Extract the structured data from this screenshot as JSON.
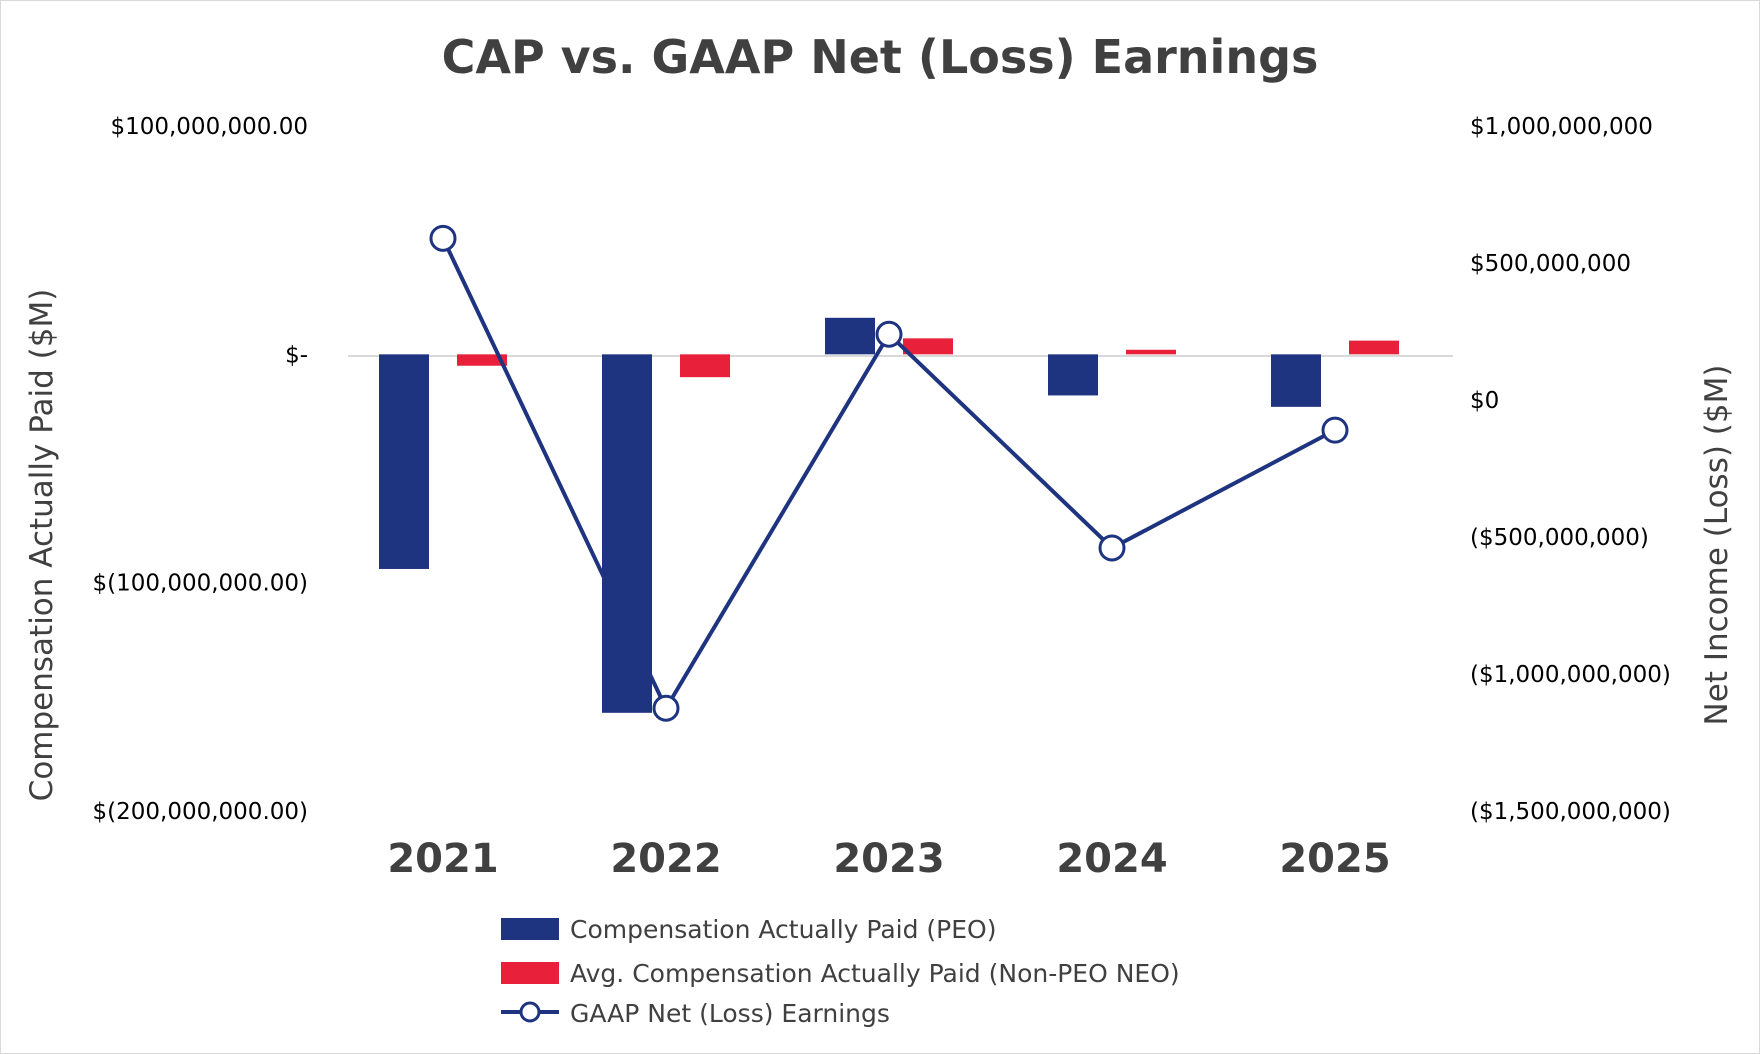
{
  "chart_data": {
    "type": "bar",
    "title": "CAP vs. GAAP Net (Loss) Earnings",
    "categories": [
      "2021",
      "2022",
      "2023",
      "2024",
      "2025"
    ],
    "series": [
      {
        "name": "Compensation Actually Paid (PEO)",
        "type": "bar",
        "axis": "left",
        "color": "#1f3480",
        "values": [
          -94000000,
          -157000000,
          16000000,
          -18000000,
          -23000000
        ]
      },
      {
        "name": "Avg. Compensation Actually Paid (Non-PEO NEO)",
        "type": "bar",
        "axis": "left",
        "color": "#e8203a",
        "values": [
          -5000000,
          -10000000,
          7000000,
          2000000,
          6000000
        ]
      },
      {
        "name": "GAAP Net (Loss) Earnings",
        "type": "line",
        "axis": "right",
        "color": "#1f3480",
        "marker": "circle",
        "values": [
          590000000,
          -1125000000,
          240000000,
          -540000000,
          -110000000
        ]
      }
    ],
    "left_axis": {
      "label": "Compensation Actually Paid ($M)",
      "ylim": [
        -200000000,
        100000000
      ],
      "ticks": [
        100000000,
        0,
        -100000000,
        -200000000
      ],
      "tick_labels": [
        "$100,000,000.00",
        "$-",
        "$(100,000,000.00)",
        "$(200,000,000.00)"
      ]
    },
    "right_axis": {
      "label": "Net Income (Loss) ($M)",
      "ylim": [
        -1500000000,
        1000000000
      ],
      "ticks": [
        1000000000,
        500000000,
        0,
        -500000000,
        -1000000000,
        -1500000000
      ],
      "tick_labels": [
        "$1,000,000,000",
        "$500,000,000",
        "$0",
        "($500,000,000)",
        "($1,000,000,000)",
        "($1,500,000,000)"
      ]
    },
    "grid": false,
    "legend_position": "bottom"
  }
}
